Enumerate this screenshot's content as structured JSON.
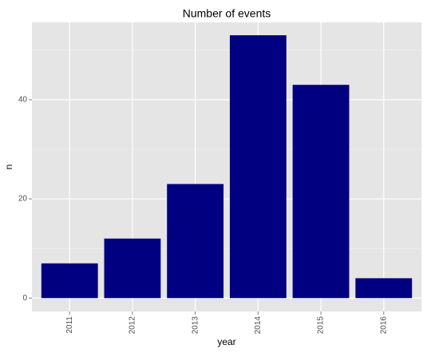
{
  "chart_data": {
    "type": "bar",
    "title": "Number of events",
    "x_label": "year",
    "y_label": "n",
    "categories": [
      "2011",
      "2012",
      "2013",
      "2014",
      "2015",
      "2016"
    ],
    "values": [
      7,
      12,
      23,
      53,
      43,
      4
    ],
    "color": "#000080",
    "ylim": [
      -2.7,
      55.6
    ],
    "yticks": [
      0,
      20,
      40
    ],
    "y_minor_grid": [
      10,
      30,
      50
    ],
    "grid": true
  }
}
